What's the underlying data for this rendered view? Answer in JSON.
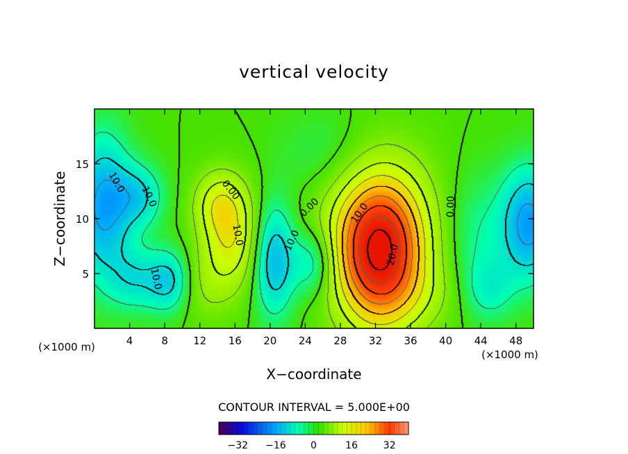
{
  "chart_data": {
    "type": "heatmap",
    "title": "vertical velocity",
    "xlabel": "X−coordinate",
    "ylabel": "Z−coordinate",
    "x_unit_left": "(×1000 m)",
    "x_unit_right": "(×1000 m)",
    "xlim": [
      0,
      50
    ],
    "ylim": [
      0,
      20
    ],
    "x_ticks": [
      4,
      8,
      12,
      16,
      20,
      24,
      28,
      32,
      36,
      40,
      44,
      48
    ],
    "y_ticks": [
      5,
      10,
      15
    ],
    "contour_interval_text": "CONTOUR INTERVAL = 5.000E+00",
    "contour_labels": [
      {
        "text": "10.0",
        "x": 2.5,
        "z": 13.3,
        "rot": 60
      },
      {
        "text": "10.0",
        "x": 6.2,
        "z": 12.0,
        "rot": 65
      },
      {
        "text": "0.00",
        "x": 15.5,
        "z": 12.6,
        "rot": 52
      },
      {
        "text": "10.0",
        "x": 16.3,
        "z": 8.5,
        "rot": 80
      },
      {
        "text": "0.00",
        "x": 24.5,
        "z": 11.0,
        "rot": -45
      },
      {
        "text": "10.0",
        "x": 22.5,
        "z": 8.0,
        "rot": -65
      },
      {
        "text": "10.0",
        "x": 7.0,
        "z": 4.5,
        "rot": 78
      },
      {
        "text": "10.0",
        "x": 30.2,
        "z": 10.5,
        "rot": -55
      },
      {
        "text": "20.0",
        "x": 34.0,
        "z": 6.7,
        "rot": -78
      },
      {
        "text": "0.00",
        "x": 40.6,
        "z": 11.1,
        "rot": -88
      }
    ],
    "features": [
      {
        "x": 32.5,
        "z": 6.8,
        "w": 36,
        "sx": 3.4,
        "sz": 4.6
      },
      {
        "x": 32.0,
        "z": 9.5,
        "w": 8,
        "sx": 5,
        "sz": 5
      },
      {
        "x": 15.5,
        "z": 8.5,
        "w": 14,
        "sx": 2.2,
        "sz": 3.2
      },
      {
        "x": 14.0,
        "z": 11.5,
        "w": 9,
        "sx": 2.0,
        "sz": 2.0
      },
      {
        "x": 12.5,
        "z": 4.0,
        "w": 5,
        "sx": 2.5,
        "sz": 2.5
      },
      {
        "x": 1.0,
        "z": 11.0,
        "w": -16,
        "sx": 2.2,
        "sz": 4.5
      },
      {
        "x": 5.0,
        "z": 12.0,
        "w": -10,
        "sx": 2.0,
        "sz": 2.0
      },
      {
        "x": 8.5,
        "z": 4.3,
        "w": -12,
        "sx": 1.8,
        "sz": 2.0
      },
      {
        "x": 4.5,
        "z": 4.5,
        "w": -8,
        "sx": 2.0,
        "sz": 2.0
      },
      {
        "x": 20.5,
        "z": 6.2,
        "w": -14,
        "sx": 1.6,
        "sz": 3.5
      },
      {
        "x": 25.0,
        "z": 6.0,
        "w": -10,
        "sx": 1.8,
        "sz": 2.2
      },
      {
        "x": 49.5,
        "z": 9.5,
        "w": -17,
        "sx": 2.2,
        "sz": 3.5
      },
      {
        "x": 45.0,
        "z": 3.5,
        "w": -6,
        "sx": 2.0,
        "sz": 2.0
      },
      {
        "x": 43.5,
        "z": 8.5,
        "w": -5,
        "sx": 2.5,
        "sz": 4.0
      },
      {
        "x": 27.0,
        "z": 15.5,
        "w": -4,
        "sx": 4.0,
        "sz": 3.0
      },
      {
        "x": 38.0,
        "z": 3.0,
        "w": 3,
        "sx": 3.0,
        "sz": 2.0
      }
    ],
    "colorbar": {
      "min": -40,
      "max": 40,
      "ticks": [
        -32,
        -16,
        0,
        16,
        32
      ]
    }
  }
}
